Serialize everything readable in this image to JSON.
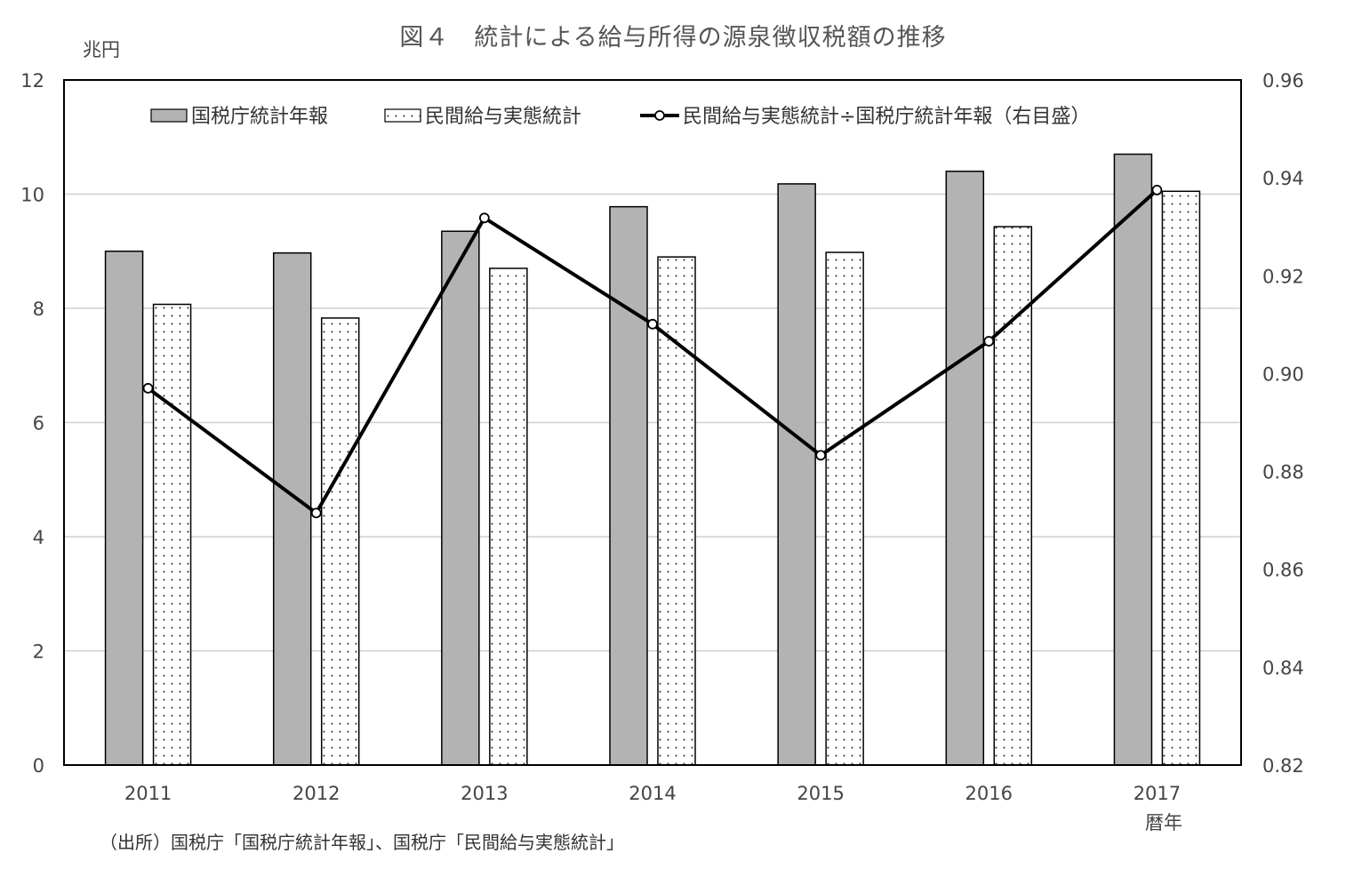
{
  "title": "図４　統計による給与所得の源泉徴収税額の推移",
  "y_unit": "兆円",
  "x_unit": "暦年",
  "source": "（出所）国税庁「国税庁統計年報」、国税庁「民間給与実態統計」",
  "chart_data": {
    "type": "bar",
    "categories": [
      "2011",
      "2012",
      "2013",
      "2014",
      "2015",
      "2016",
      "2017"
    ],
    "series": [
      {
        "name": "国税庁統計年報",
        "type": "bar",
        "axis": "left",
        "fill": "#b3b3b3",
        "values": [
          9.0,
          8.97,
          9.35,
          9.78,
          10.18,
          10.4,
          10.7
        ]
      },
      {
        "name": "民間給与実態統計",
        "type": "bar",
        "axis": "left",
        "fill": "dotted",
        "values": [
          8.07,
          7.83,
          8.7,
          8.9,
          8.98,
          9.43,
          10.05
        ]
      },
      {
        "name": "民間給与実態統計÷国税庁統計年報（右目盛）",
        "type": "line",
        "axis": "right",
        "color": "#000000",
        "values": [
          0.897,
          0.8715,
          0.9318,
          0.9101,
          0.8833,
          0.9066,
          0.9375
        ]
      }
    ],
    "ylim_left": [
      0,
      12
    ],
    "yticks_left": [
      "0",
      "2",
      "4",
      "6",
      "8",
      "10",
      "12"
    ],
    "ylim_right": [
      0.82,
      0.96
    ],
    "yticks_right": [
      "0.82",
      "0.84",
      "0.86",
      "0.88",
      "0.90",
      "0.92",
      "0.94",
      "0.96"
    ],
    "grid": true,
    "legend_position": "top"
  }
}
